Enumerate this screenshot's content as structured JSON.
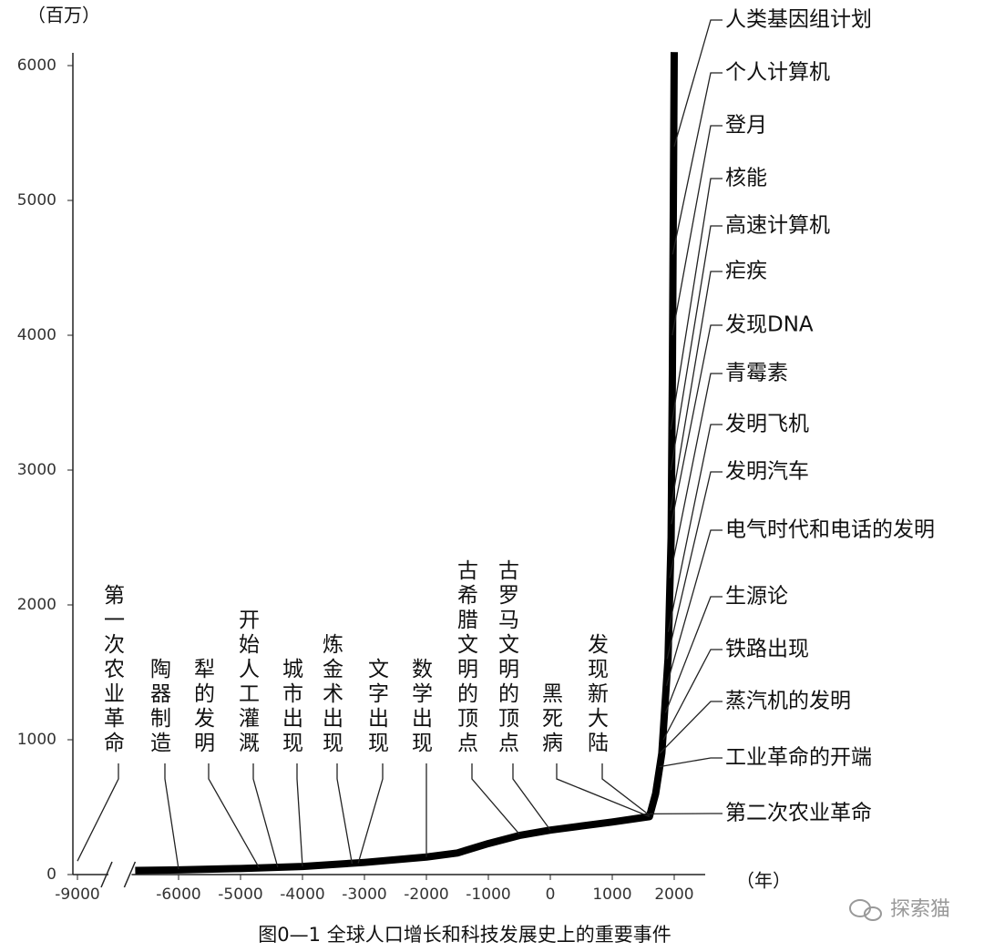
{
  "chart_data": {
    "type": "line",
    "y_unit_label": "（百万）",
    "x_unit_label": "（年）",
    "caption": "图0—1 全球人口增长和科技发展史上的重要事件",
    "watermark": "探索猫",
    "x": [
      -6700,
      -6000,
      -5000,
      -4000,
      -3000,
      -2000,
      -1500,
      -1000,
      -500,
      0,
      500,
      1000,
      1600,
      1700,
      1800,
      1900,
      1950,
      1970,
      1990,
      2000
    ],
    "series": [
      {
        "name": "全球人口",
        "color": "#000000",
        "values": [
          30,
          35,
          45,
          60,
          90,
          130,
          160,
          230,
          290,
          330,
          360,
          390,
          430,
          600,
          900,
          1600,
          2500,
          3700,
          5300,
          6100
        ]
      }
    ],
    "xlim": [
      -9000,
      2500
    ],
    "axis_break": [
      -8500,
      -6700
    ],
    "xticks": [
      -9000,
      -6000,
      -5000,
      -4000,
      -3000,
      -2000,
      -1000,
      0,
      1000,
      2000
    ],
    "ylim": [
      0,
      6000
    ],
    "yticks": [
      0,
      1000,
      2000,
      3000,
      4000,
      5000,
      6000
    ],
    "bottom_annotations": [
      {
        "text": "第一次农业革命",
        "x": -9000,
        "y": 100
      },
      {
        "text": "陶器制造",
        "x": -6000,
        "y": 40
      },
      {
        "text": "犁的发明",
        "x": -4700,
        "y": 50
      },
      {
        "text": "开始人工灌溉",
        "x": -4400,
        "y": 55
      },
      {
        "text": "城市出现",
        "x": -4000,
        "y": 60
      },
      {
        "text": "炼金术出现",
        "x": -3200,
        "y": 80
      },
      {
        "text": "文字出现",
        "x": -3100,
        "y": 85
      },
      {
        "text": "数学出现",
        "x": -2000,
        "y": 130
      },
      {
        "text": "古希腊文明的顶点",
        "x": -500,
        "y": 300
      },
      {
        "text": "古罗马文明的顶点",
        "x": 0,
        "y": 330
      },
      {
        "text": "黑死病",
        "x": 1600,
        "y": 430
      },
      {
        "text": "发现新大陆",
        "x": 1600,
        "y": 440
      }
    ],
    "right_annotations": [
      {
        "text": "人类基因组计划",
        "x": 2000,
        "y": 5400
      },
      {
        "text": "个人计算机",
        "x": 1975,
        "y": 4600
      },
      {
        "text": "登月",
        "x": 1969,
        "y": 4000
      },
      {
        "text": "核能",
        "x": 1945,
        "y": 3300
      },
      {
        "text": "高速计算机",
        "x": 1946,
        "y": 3000
      },
      {
        "text": "疟疾",
        "x": 1940,
        "y": 2700
      },
      {
        "text": "发现DNA",
        "x": 1953,
        "y": 2600
      },
      {
        "text": "青霉素",
        "x": 1928,
        "y": 2200
      },
      {
        "text": "发明飞机",
        "x": 1903,
        "y": 1800
      },
      {
        "text": "发明汽车",
        "x": 1886,
        "y": 1600
      },
      {
        "text": "电气时代和电话的发明",
        "x": 1876,
        "y": 1400
      },
      {
        "text": "生源论",
        "x": 1860,
        "y": 1200
      },
      {
        "text": "铁路出现",
        "x": 1825,
        "y": 1000
      },
      {
        "text": "蒸汽机的发明",
        "x": 1769,
        "y": 900
      },
      {
        "text": "工业革命的开端",
        "x": 1760,
        "y": 800
      },
      {
        "text": "第二次农业革命",
        "x": 1600,
        "y": 450
      }
    ]
  }
}
